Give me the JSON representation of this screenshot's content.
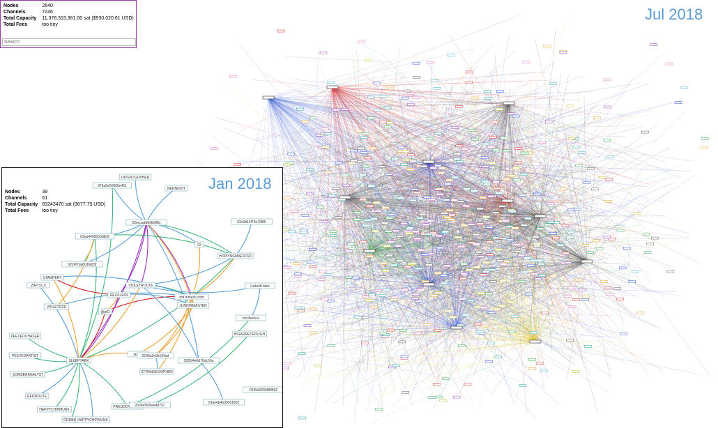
{
  "stats_panel": {
    "rows": [
      {
        "label": "Nodes",
        "value": 2640
      },
      {
        "label": "Channels",
        "value": 7246
      },
      {
        "label": "Total Capacity",
        "value": "11,376,315,361.00 sat ($930,020.61 USD)"
      },
      {
        "label": "Total Fees",
        "value": "too tiny"
      }
    ],
    "search_placeholder": "Search"
  },
  "main_graph": {
    "title": "Jul 2018"
  },
  "inset": {
    "title": "Jan 2018",
    "stats": [
      {
        "label": "Nodes",
        "value": 39
      },
      {
        "label": "Channels",
        "value": 61
      },
      {
        "label": "Total Capacity",
        "value": "83243470 sat (9677.75 USD)"
      },
      {
        "label": "Total Fees",
        "value": "too tiny"
      }
    ],
    "nodes": [
      "976a5e50965e451",
      "LATENTGOPHER",
      "REDNIGHT",
      "02eccaddfe8b9f8c",
      "03c3d14f74e70f85",
      "02ea44900b0d8d5",
      "02",
      "HOPPINGMAESTRO",
      "0224f7de8cd6dc5f",
      "STAMPERT",
      "ZAP r0_0",
      "VIOLETROUTE",
      "RECKLESS",
      "md.lnmesh.com",
      "LinkedLnder",
      "JUNIORMASTER",
      "VIOLETCED",
      "@ptO",
      "md.flesh.io",
      "BIGARRETROUGH",
      "PEEVEDCHASER",
      "PEEVEDARTIST",
      "SLEEPYARK",
      "lastbit",
      "0295a2e9b164ad",
      "0295f4e6d70dc59a",
      "STRANGEGOPHER",
      "SOMBERANALYST",
      "REDROUTE",
      "0245d2255f8ff592",
      "PREUDOVAPPER",
      "0336e5b9faa4d797",
      "03ae4b4bd3061805",
      "HAPPYCHIPMUNK",
      "ODDBAG",
      "HAPPYCHIPMUNK"
    ]
  }
}
